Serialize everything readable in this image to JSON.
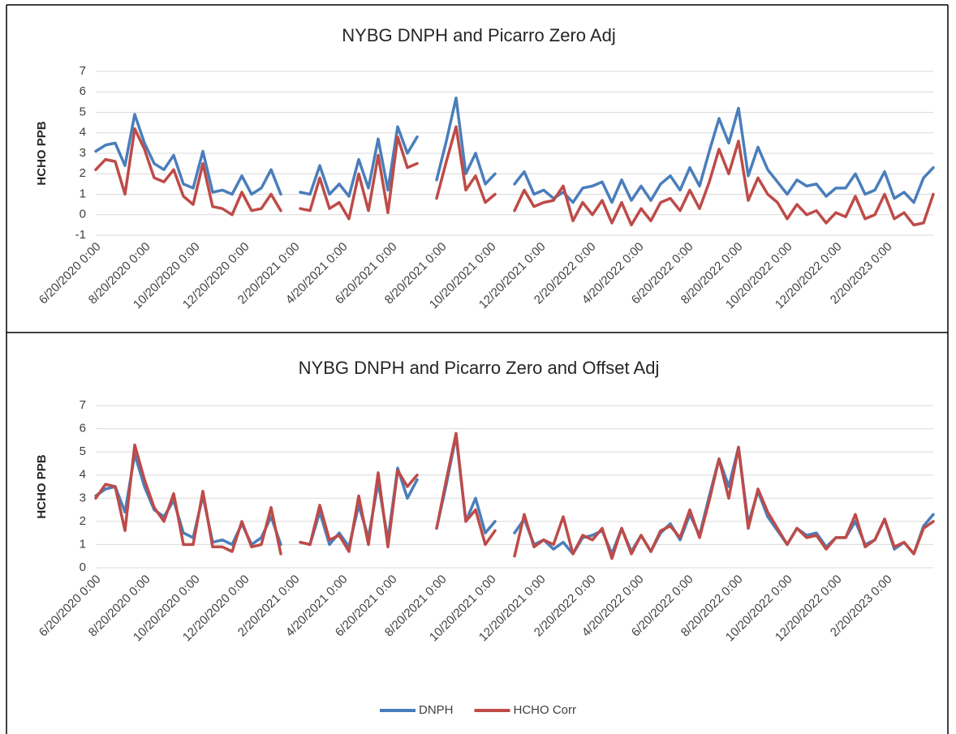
{
  "chart_data": [
    {
      "type": "line",
      "title": "NYBG DNPH and Picarro Zero Adj",
      "y_label": "HCHO PPB",
      "x": [
        "2020-06-20",
        "2020-07-02",
        "2020-07-14",
        "2020-07-26",
        "2020-08-07",
        "2020-08-19",
        "2020-08-31",
        "2020-09-12",
        "2020-09-24",
        "2020-10-06",
        "2020-10-18",
        "2020-10-30",
        "2020-11-11",
        "2020-11-23",
        "2020-12-05",
        "2020-12-17",
        "2020-12-29",
        "2021-01-10",
        "2021-01-22",
        "2021-02-03",
        "2021-02-15",
        "2021-02-27",
        "2021-03-11",
        "2021-03-23",
        "2021-04-04",
        "2021-04-16",
        "2021-04-28",
        "2021-05-10",
        "2021-05-22",
        "2021-06-03",
        "2021-06-15",
        "2021-06-27",
        "2021-07-09",
        "2021-07-21",
        "2021-08-02",
        "2021-08-14",
        "2021-08-26",
        "2021-09-07",
        "2021-09-19",
        "2021-10-01",
        "2021-10-13",
        "2021-10-25",
        "2021-11-06",
        "2021-11-18",
        "2021-11-30",
        "2021-12-12",
        "2021-12-24",
        "2022-01-05",
        "2022-01-17",
        "2022-01-29",
        "2022-02-10",
        "2022-02-22",
        "2022-03-06",
        "2022-03-18",
        "2022-03-30",
        "2022-04-11",
        "2022-04-23",
        "2022-05-05",
        "2022-05-17",
        "2022-05-29",
        "2022-06-10",
        "2022-06-22",
        "2022-07-04",
        "2022-07-16",
        "2022-07-28",
        "2022-08-09",
        "2022-08-21",
        "2022-09-02",
        "2022-09-14",
        "2022-09-26",
        "2022-10-08",
        "2022-10-20",
        "2022-11-01",
        "2022-11-13",
        "2022-11-25",
        "2022-12-07",
        "2022-12-19",
        "2022-12-31",
        "2023-01-12",
        "2023-01-24",
        "2023-02-05",
        "2023-02-17",
        "2023-03-01",
        "2023-03-13",
        "2023-03-25",
        "2023-04-06",
        "2023-04-18"
      ],
      "xlim": [
        "2020-06-20",
        "2023-04-18"
      ],
      "xticks": [
        "6/20/2020 0:00",
        "8/20/2020 0:00",
        "10/20/2020 0:00",
        "12/20/2020 0:00",
        "2/20/2021 0:00",
        "4/20/2021 0:00",
        "6/20/2021 0:00",
        "8/20/2021 0:00",
        "10/20/2021 0:00",
        "12/20/2021 0:00",
        "2/20/2022 0:00",
        "4/20/2022 0:00",
        "6/20/2022 0:00",
        "8/20/2022 0:00",
        "10/20/2022 0:00",
        "12/20/2022 0:00",
        "2/20/2023 0:00"
      ],
      "ylim": [
        -1,
        7
      ],
      "yticks": [
        -1,
        0,
        1,
        2,
        3,
        4,
        5,
        6,
        7
      ],
      "grid": true,
      "series": [
        {
          "color": "#4a7ebb",
          "values": [
            3.1,
            3.4,
            3.5,
            2.4,
            4.9,
            3.5,
            2.5,
            2.2,
            2.9,
            1.5,
            1.3,
            3.1,
            1.1,
            1.2,
            1.0,
            1.9,
            1.0,
            1.3,
            2.2,
            1.0,
            null,
            1.1,
            1.0,
            2.4,
            1.0,
            1.5,
            0.9,
            2.7,
            1.3,
            3.7,
            1.2,
            4.3,
            3.0,
            3.8,
            null,
            1.7,
            3.6,
            5.7,
            2.0,
            3.0,
            1.5,
            2.0,
            null,
            1.5,
            2.1,
            1.0,
            1.2,
            0.8,
            1.1,
            0.6,
            1.3,
            1.4,
            1.6,
            0.6,
            1.7,
            0.7,
            1.4,
            0.7,
            1.5,
            1.9,
            1.2,
            2.3,
            1.4,
            3.1,
            4.7,
            3.5,
            5.2,
            1.9,
            3.3,
            2.2,
            1.6,
            1.0,
            1.7,
            1.4,
            1.5,
            0.9,
            1.3,
            1.3,
            2.0,
            1.0,
            1.2,
            2.1,
            0.8,
            1.1,
            0.6,
            1.8,
            2.3
          ]
        },
        {
          "color": "#be4b48",
          "values": [
            2.2,
            2.7,
            2.6,
            1.0,
            4.2,
            3.2,
            1.8,
            1.6,
            2.2,
            0.9,
            0.5,
            2.5,
            0.4,
            0.3,
            0.0,
            1.1,
            0.2,
            0.3,
            1.0,
            0.2,
            null,
            0.3,
            0.2,
            1.8,
            0.3,
            0.6,
            -0.2,
            2.0,
            0.2,
            2.9,
            0.1,
            3.8,
            2.3,
            2.5,
            null,
            0.8,
            2.6,
            4.3,
            1.2,
            1.9,
            0.6,
            1.0,
            null,
            0.2,
            1.2,
            0.4,
            0.6,
            0.7,
            1.4,
            -0.3,
            0.6,
            0.0,
            0.7,
            -0.4,
            0.6,
            -0.5,
            0.3,
            -0.3,
            0.6,
            0.8,
            0.2,
            1.2,
            0.3,
            1.6,
            3.2,
            2.0,
            3.6,
            0.7,
            1.8,
            1.0,
            0.6,
            -0.2,
            0.5,
            0.0,
            0.2,
            -0.4,
            0.1,
            -0.1,
            0.9,
            -0.2,
            0.0,
            1.0,
            -0.2,
            0.1,
            -0.5,
            -0.4,
            1.0
          ]
        }
      ]
    },
    {
      "type": "line",
      "title": "NYBG DNPH and Picarro Zero and Offset Adj",
      "y_label": "HCHO PPB",
      "x": [
        "2020-06-20",
        "2020-07-02",
        "2020-07-14",
        "2020-07-26",
        "2020-08-07",
        "2020-08-19",
        "2020-08-31",
        "2020-09-12",
        "2020-09-24",
        "2020-10-06",
        "2020-10-18",
        "2020-10-30",
        "2020-11-11",
        "2020-11-23",
        "2020-12-05",
        "2020-12-17",
        "2020-12-29",
        "2021-01-10",
        "2021-01-22",
        "2021-02-03",
        "2021-02-15",
        "2021-02-27",
        "2021-03-11",
        "2021-03-23",
        "2021-04-04",
        "2021-04-16",
        "2021-04-28",
        "2021-05-10",
        "2021-05-22",
        "2021-06-03",
        "2021-06-15",
        "2021-06-27",
        "2021-07-09",
        "2021-07-21",
        "2021-08-02",
        "2021-08-14",
        "2021-08-26",
        "2021-09-07",
        "2021-09-19",
        "2021-10-01",
        "2021-10-13",
        "2021-10-25",
        "2021-11-06",
        "2021-11-18",
        "2021-11-30",
        "2021-12-12",
        "2021-12-24",
        "2022-01-05",
        "2022-01-17",
        "2022-01-29",
        "2022-02-10",
        "2022-02-22",
        "2022-03-06",
        "2022-03-18",
        "2022-03-30",
        "2022-04-11",
        "2022-04-23",
        "2022-05-05",
        "2022-05-17",
        "2022-05-29",
        "2022-06-10",
        "2022-06-22",
        "2022-07-04",
        "2022-07-16",
        "2022-07-28",
        "2022-08-09",
        "2022-08-21",
        "2022-09-02",
        "2022-09-14",
        "2022-09-26",
        "2022-10-08",
        "2022-10-20",
        "2022-11-01",
        "2022-11-13",
        "2022-11-25",
        "2022-12-07",
        "2022-12-19",
        "2022-12-31",
        "2023-01-12",
        "2023-01-24",
        "2023-02-05",
        "2023-02-17",
        "2023-03-01",
        "2023-03-13",
        "2023-03-25",
        "2023-04-06",
        "2023-04-18"
      ],
      "xlim": [
        "2020-06-20",
        "2023-04-18"
      ],
      "xticks": [
        "6/20/2020 0:00",
        "8/20/2020 0:00",
        "10/20/2020 0:00",
        "12/20/2020 0:00",
        "2/20/2021 0:00",
        "4/20/2021 0:00",
        "6/20/2021 0:00",
        "8/20/2021 0:00",
        "10/20/2021 0:00",
        "12/20/2021 0:00",
        "2/20/2022 0:00",
        "4/20/2022 0:00",
        "6/20/2022 0:00",
        "8/20/2022 0:00",
        "10/20/2022 0:00",
        "12/20/2022 0:00",
        "2/20/2023 0:00"
      ],
      "ylim": [
        0,
        7
      ],
      "yticks": [
        0,
        1,
        2,
        3,
        4,
        5,
        6,
        7
      ],
      "grid": true,
      "legend": "bottom",
      "series": [
        {
          "name": "DNPH",
          "color": "#4a7ebb",
          "values": [
            3.1,
            3.4,
            3.5,
            2.4,
            4.9,
            3.5,
            2.5,
            2.2,
            2.9,
            1.5,
            1.3,
            3.1,
            1.1,
            1.2,
            1.0,
            1.9,
            1.0,
            1.3,
            2.2,
            1.0,
            null,
            1.1,
            1.0,
            2.4,
            1.0,
            1.5,
            0.9,
            2.7,
            1.3,
            3.7,
            1.2,
            4.3,
            3.0,
            3.8,
            null,
            1.7,
            3.6,
            5.7,
            2.0,
            3.0,
            1.5,
            2.0,
            null,
            1.5,
            2.1,
            1.0,
            1.2,
            0.8,
            1.1,
            0.6,
            1.3,
            1.4,
            1.6,
            0.6,
            1.7,
            0.7,
            1.4,
            0.7,
            1.5,
            1.9,
            1.2,
            2.3,
            1.4,
            3.1,
            4.7,
            3.5,
            5.2,
            1.9,
            3.3,
            2.2,
            1.6,
            1.0,
            1.7,
            1.4,
            1.5,
            0.9,
            1.3,
            1.3,
            2.0,
            1.0,
            1.2,
            2.1,
            0.8,
            1.1,
            0.6,
            1.8,
            2.3
          ]
        },
        {
          "name": "HCHO Corr",
          "color": "#be4b48",
          "values": [
            3.0,
            3.6,
            3.5,
            1.6,
            5.3,
            3.8,
            2.6,
            2.0,
            3.2,
            1.0,
            1.0,
            3.3,
            0.9,
            0.9,
            0.7,
            2.0,
            0.9,
            1.0,
            2.6,
            0.6,
            null,
            1.1,
            1.0,
            2.7,
            1.2,
            1.4,
            0.7,
            3.1,
            1.0,
            4.1,
            0.9,
            4.2,
            3.5,
            4.0,
            null,
            1.7,
            3.8,
            5.8,
            2.0,
            2.5,
            1.0,
            1.6,
            null,
            0.5,
            2.3,
            0.9,
            1.2,
            1.0,
            2.2,
            0.6,
            1.4,
            1.2,
            1.7,
            0.4,
            1.7,
            0.6,
            1.4,
            0.7,
            1.6,
            1.8,
            1.3,
            2.5,
            1.3,
            2.9,
            4.7,
            3.0,
            5.2,
            1.7,
            3.4,
            2.4,
            1.7,
            1.0,
            1.7,
            1.3,
            1.4,
            0.8,
            1.3,
            1.3,
            2.3,
            0.9,
            1.2,
            2.1,
            0.9,
            1.1,
            0.6,
            1.7,
            2.0
          ]
        }
      ]
    }
  ]
}
